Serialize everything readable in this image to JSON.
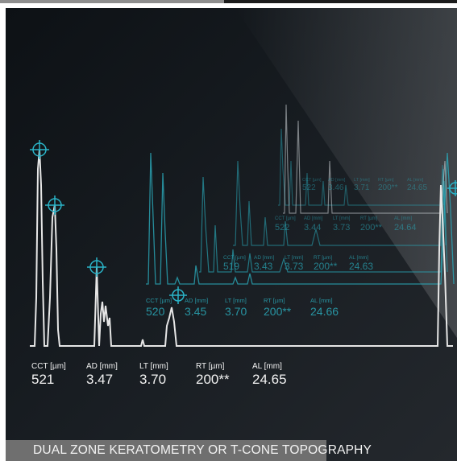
{
  "caption": "DUAL ZONE KERATOMETRY OR T-CONE TOPOGRAPHY",
  "colors": {
    "trace_front": "#e6e6e6",
    "trace_back": "#2aa9b9",
    "marker": "#2ab4c8",
    "caption_bg": "#6f6f6f"
  },
  "measurement_rows": [
    {
      "layer": "front",
      "items": [
        {
          "label": "CCT [µm]",
          "value": "521"
        },
        {
          "label": "AD  [mm]",
          "value": "3.47"
        },
        {
          "label": "LT  [mm]",
          "value": "3.70"
        },
        {
          "label": "RT  [µm]",
          "value": "200**"
        },
        {
          "label": "AL  [mm]",
          "value": "24.65"
        }
      ]
    },
    {
      "layer": "back-1",
      "items": [
        {
          "label": "CCT [µm]",
          "value": "520"
        },
        {
          "label": "AD  [mm]",
          "value": "3.45"
        },
        {
          "label": "LT  [mm]",
          "value": "3.70"
        },
        {
          "label": "RT  [µm]",
          "value": "200**"
        },
        {
          "label": "AL  [mm]",
          "value": "24.66"
        }
      ]
    },
    {
      "layer": "back-2",
      "items": [
        {
          "label": "CCT [µm]",
          "value": "519"
        },
        {
          "label": "AD  [mm]",
          "value": "3.43"
        },
        {
          "label": "LT  [mm]",
          "value": "3.73"
        },
        {
          "label": "RT  [µm]",
          "value": "200**"
        },
        {
          "label": "AL  [mm]",
          "value": "24.63"
        }
      ]
    },
    {
      "layer": "back-3",
      "items": [
        {
          "label": "CCT [µm]",
          "value": "522"
        },
        {
          "label": "AD  [mm]",
          "value": "3.44"
        },
        {
          "label": "LT  [mm]",
          "value": "3.73"
        },
        {
          "label": "RT  [µm]",
          "value": "200**"
        },
        {
          "label": "AL  [mm]",
          "value": "24.64"
        }
      ]
    },
    {
      "layer": "back-4",
      "items": [
        {
          "label": "CCT [µm]",
          "value": "522"
        },
        {
          "label": "AD  [mm]",
          "value": "3.46"
        },
        {
          "label": "LT  [mm]",
          "value": "3.71"
        },
        {
          "label": "RT  [µm]",
          "value": "200**"
        },
        {
          "label": "AL  [mm]",
          "value": "24.65"
        }
      ]
    }
  ]
}
